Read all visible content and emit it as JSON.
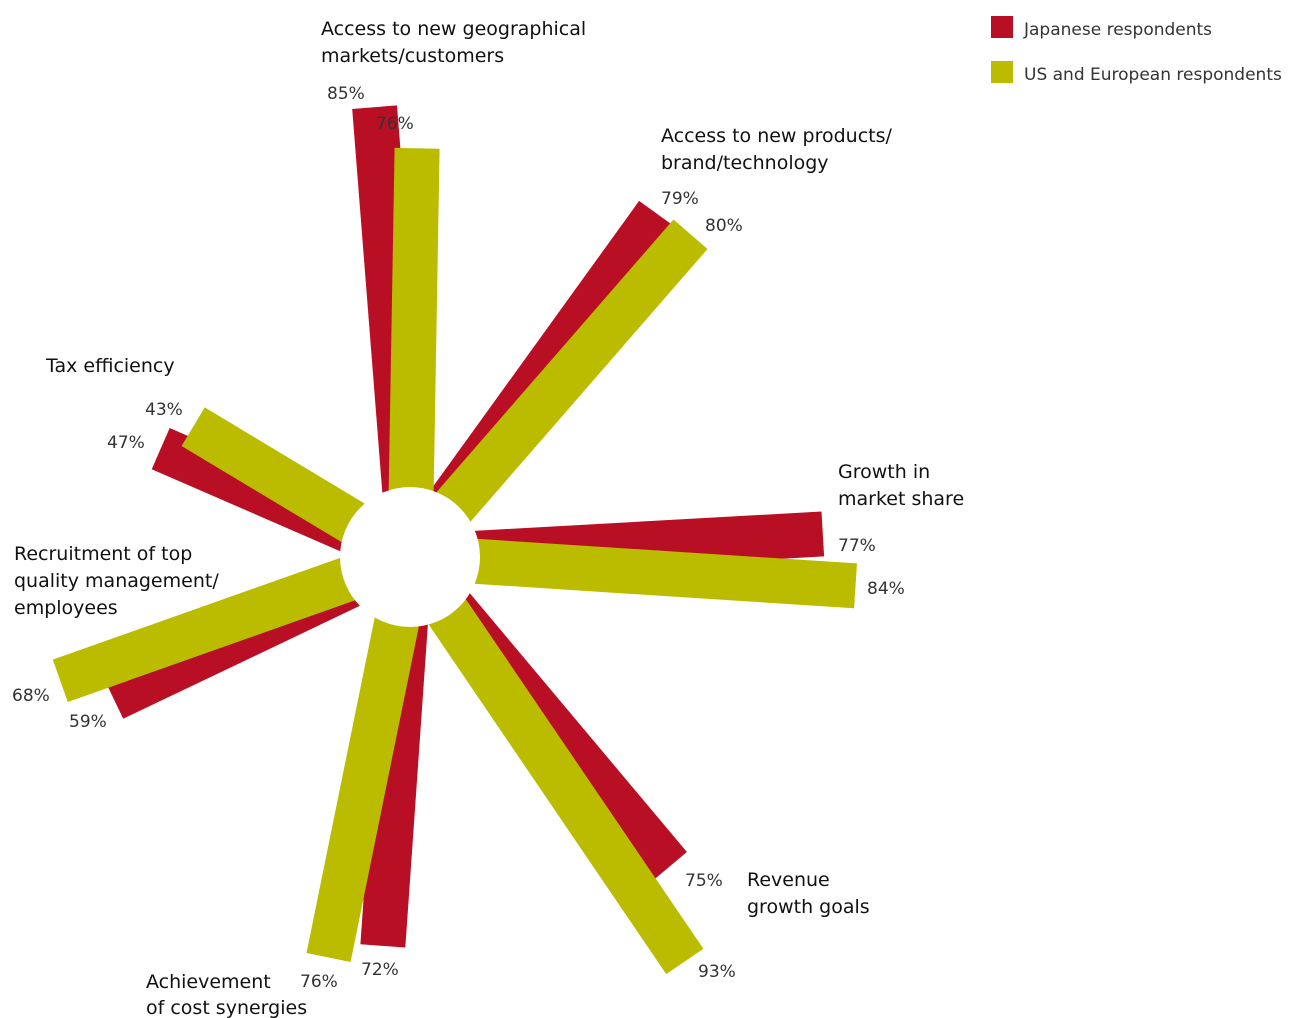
{
  "chart_data": {
    "type": "radial-bar",
    "series": [
      {
        "name": "Japanese respondents",
        "color": "#B80F24",
        "values": [
          85,
          79,
          77,
          75,
          72,
          59,
          47
        ]
      },
      {
        "name": "US and European respondents",
        "color": "#BBBC00",
        "values": [
          76,
          80,
          84,
          93,
          76,
          68,
          43
        ]
      }
    ],
    "categories": [
      {
        "lines": [
          "Access to new geographical",
          "markets/customers"
        ],
        "value_labels": [
          "85%",
          "76%"
        ]
      },
      {
        "lines": [
          "Access to new products/",
          "brand/technology"
        ],
        "value_labels": [
          "79%",
          "80%"
        ]
      },
      {
        "lines": [
          "Growth in",
          "market share"
        ],
        "value_labels": [
          "77%",
          "84%"
        ]
      },
      {
        "lines": [
          "Revenue",
          "growth goals"
        ],
        "value_labels": [
          "75%",
          "93%"
        ]
      },
      {
        "lines": [
          "Achievement",
          "of cost synergies"
        ],
        "value_labels": [
          "72%",
          "76%"
        ]
      },
      {
        "lines": [
          "Recruitment of top",
          "quality management/",
          "employees"
        ],
        "value_labels": [
          "59%",
          "68%"
        ]
      },
      {
        "lines": [
          "Tax efficiency"
        ],
        "value_labels": [
          "47%",
          "43%"
        ]
      }
    ]
  }
}
